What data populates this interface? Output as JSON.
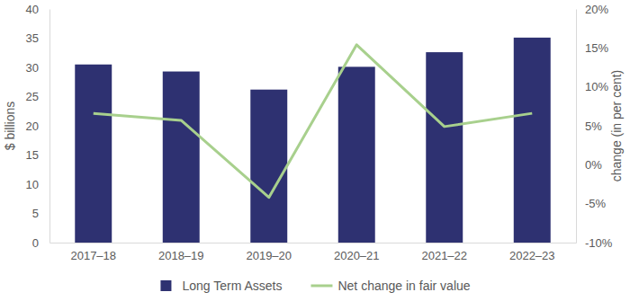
{
  "chart_data": {
    "type": "bar",
    "categories": [
      "2017–18",
      "2018–19",
      "2019–20",
      "2020–21",
      "2021–22",
      "2022–23"
    ],
    "series": [
      {
        "name": "Long Term Assets",
        "type": "bar",
        "color": "#2e3171",
        "values": [
          30.5,
          29.3,
          26.2,
          30.1,
          32.6,
          35.1
        ]
      },
      {
        "name": "Net change in fair value",
        "type": "line",
        "color": "#a8d08d",
        "axis": "y2",
        "values": [
          6.6,
          5.7,
          -4.2,
          15.4,
          4.9,
          6.6
        ]
      }
    ],
    "y_label": "$ billions",
    "y2_label": "change (in per cent)",
    "ylim": [
      0,
      40
    ],
    "yticks": [
      0,
      5,
      10,
      15,
      20,
      25,
      30,
      35,
      40
    ],
    "y2lim": [
      -10,
      20
    ],
    "y2ticks": [
      {
        "value": -10,
        "label": "-10%"
      },
      {
        "value": -5,
        "label": "-5%"
      },
      {
        "value": 0,
        "label": "0%"
      },
      {
        "value": 5,
        "label": "5%"
      },
      {
        "value": 10,
        "label": "10%"
      },
      {
        "value": 15,
        "label": "15%"
      },
      {
        "value": 20,
        "label": "20%"
      }
    ],
    "grid": false,
    "legend": "bottom"
  }
}
